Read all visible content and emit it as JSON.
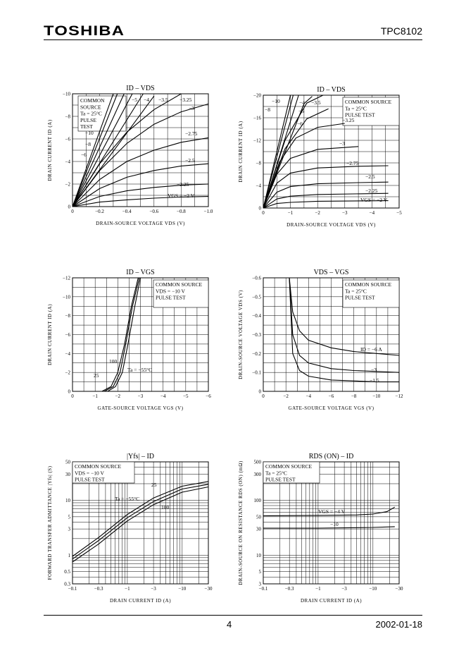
{
  "header": {
    "logo": "TOSHIBA",
    "part_number": "TPC8102"
  },
  "footer": {
    "page": "4",
    "date": "2002-01-18"
  },
  "chart_data": [
    {
      "type": "line",
      "title": "ID – VDS",
      "xlabel": "DRAIN-SOURCE VOLTAGE VDS (V)",
      "ylabel": "DRAIN CURRENT ID (A)",
      "xlim": [
        0,
        -1.0
      ],
      "ylim": [
        0,
        -10
      ],
      "x_ticks": [
        "0",
        "−0.2",
        "−0.4",
        "−0.6",
        "−0.8",
        "−1.0"
      ],
      "y_ticks": [
        "0",
        "−2",
        "−4",
        "−6",
        "−8",
        "−10"
      ],
      "annotation": [
        "COMMON",
        "SOURCE",
        "Ta = 25°C",
        "PULSE",
        "TEST"
      ],
      "series": [
        {
          "name": "−10",
          "x": [
            0,
            -0.3
          ],
          "y": [
            0,
            -10
          ]
        },
        {
          "name": "−8",
          "x": [
            0,
            -0.33
          ],
          "y": [
            0,
            -10
          ]
        },
        {
          "name": "−6",
          "x": [
            0,
            -0.38
          ],
          "y": [
            0,
            -10
          ]
        },
        {
          "name": "−5",
          "x": [
            0,
            -0.44
          ],
          "y": [
            0,
            -10
          ]
        },
        {
          "name": "−4",
          "x": [
            0,
            -0.52
          ],
          "y": [
            0,
            -10
          ]
        },
        {
          "name": "−3.5",
          "x": [
            0,
            -0.6
          ],
          "y": [
            0,
            -9.8
          ]
        },
        {
          "name": "−3.25",
          "x": [
            0,
            -0.2,
            -0.4,
            -0.6,
            -0.8
          ],
          "y": [
            0,
            -3.8,
            -6.6,
            -8.6,
            -10
          ]
        },
        {
          "name": "−3",
          "x": [
            0,
            -0.2,
            -0.4,
            -0.6,
            -0.8,
            -1.0
          ],
          "y": [
            0,
            -3.2,
            -5.6,
            -7.3,
            -8.4,
            -9.1
          ]
        },
        {
          "name": "−2.75",
          "x": [
            0,
            -0.2,
            -0.4,
            -0.6,
            -0.8,
            -1.0
          ],
          "y": [
            0,
            -2.4,
            -4.0,
            -5.0,
            -5.7,
            -6.1
          ]
        },
        {
          "name": "−2.5",
          "x": [
            0,
            -0.2,
            -0.4,
            -0.6,
            -0.8,
            -1.0
          ],
          "y": [
            0,
            -1.6,
            -2.6,
            -3.2,
            -3.6,
            -3.8
          ]
        },
        {
          "name": "−2.25",
          "x": [
            0,
            -0.2,
            -0.4,
            -0.6,
            -0.8,
            -1.0
          ],
          "y": [
            0,
            -0.9,
            -1.4,
            -1.7,
            -1.9,
            -2.0
          ]
        },
        {
          "name": "VGS = −2 V",
          "x": [
            0,
            -0.2,
            -0.4,
            -0.6,
            -0.8,
            -1.0
          ],
          "y": [
            0,
            -0.4,
            -0.6,
            -0.75,
            -0.85,
            -0.9
          ]
        }
      ]
    },
    {
      "type": "line",
      "title": "ID – VDS",
      "xlabel": "DRAIN-SOURCE VOLTAGE VDS (V)",
      "ylabel": "DRAIN CURRENT ID (A)",
      "xlim": [
        0,
        -5
      ],
      "ylim": [
        0,
        -20
      ],
      "x_ticks": [
        "0",
        "−1",
        "−2",
        "−3",
        "−4",
        "−5"
      ],
      "y_ticks": [
        "0",
        "−4",
        "−8",
        "−12",
        "−16",
        "−20"
      ],
      "annotation": [
        "COMMON SOURCE",
        "Ta = 25°C",
        "PULSE TEST"
      ],
      "series": [
        {
          "name": "−10",
          "x": [
            0,
            -1.0
          ],
          "y": [
            0,
            -20
          ]
        },
        {
          "name": "−8",
          "x": [
            0,
            -1.1
          ],
          "y": [
            0,
            -20
          ]
        },
        {
          "name": "−6",
          "x": [
            0,
            -1.3
          ],
          "y": [
            0,
            -20
          ]
        },
        {
          "name": "−5",
          "x": [
            0,
            -1.5,
            -1.8
          ],
          "y": [
            0,
            -18.5,
            -19.8
          ]
        },
        {
          "name": "−4",
          "x": [
            0,
            -0.8,
            -1.6,
            -2.2
          ],
          "y": [
            0,
            -12.0,
            -18.6,
            -20
          ]
        },
        {
          "name": "−3.5",
          "x": [
            0,
            -0.8,
            -1.6,
            -2.4
          ],
          "y": [
            0,
            -10.5,
            -15.8,
            -17.6
          ]
        },
        {
          "name": "−3.25",
          "x": [
            0,
            -0.6,
            -1.2,
            -2.0,
            -3.0
          ],
          "y": [
            0,
            -8.2,
            -12.4,
            -14.3,
            -15.0
          ]
        },
        {
          "name": "−3",
          "x": [
            0,
            -0.5,
            -1.0,
            -2.0,
            -3.5
          ],
          "y": [
            0,
            -6.0,
            -8.8,
            -10.4,
            -10.9
          ]
        },
        {
          "name": "−2.75",
          "x": [
            0,
            -0.5,
            -1.0,
            -2.0,
            -3.5,
            -4.6
          ],
          "y": [
            0,
            -4.4,
            -6.2,
            -7.1,
            -7.4,
            -7.5
          ]
        },
        {
          "name": "−2.5",
          "x": [
            0,
            -0.5,
            -1.0,
            -2.0,
            -3.5,
            -4.6
          ],
          "y": [
            0,
            -2.8,
            -3.8,
            -4.3,
            -4.5,
            -4.6
          ]
        },
        {
          "name": "−2.25",
          "x": [
            0,
            -0.5,
            -1.0,
            -2.0,
            -4.6
          ],
          "y": [
            0,
            -1.6,
            -2.1,
            -2.4,
            -2.6
          ]
        },
        {
          "name": "VGS = −2 V",
          "x": [
            0,
            -0.5,
            -1.0,
            -2.0,
            -4.6
          ],
          "y": [
            0,
            -0.8,
            -1.0,
            -1.2,
            -1.3
          ]
        }
      ]
    },
    {
      "type": "line",
      "title": "ID – VGS",
      "xlabel": "GATE-SOURCE VOLTAGE VGS (V)",
      "ylabel": "DRAIN CURRENT ID (A)",
      "xlim": [
        0,
        -6
      ],
      "ylim": [
        0,
        -12
      ],
      "x_ticks": [
        "0",
        "−1",
        "−2",
        "−3",
        "−4",
        "−5",
        "−6"
      ],
      "y_ticks": [
        "0",
        "−2",
        "−4",
        "−6",
        "−8",
        "−10",
        "−12"
      ],
      "annotation": [
        "COMMON SOURCE",
        "VDS = −10 V",
        "PULSE TEST"
      ],
      "series": [
        {
          "name": "100",
          "x": [
            -1.3,
            -1.7,
            -2.0,
            -2.3,
            -2.6,
            -2.9
          ],
          "y": [
            0,
            -0.5,
            -2.0,
            -5.0,
            -9.0,
            -12
          ]
        },
        {
          "name": "25",
          "x": [
            -1.4,
            -1.8,
            -2.1,
            -2.35,
            -2.65,
            -2.95
          ],
          "y": [
            0,
            -0.5,
            -2.0,
            -5.0,
            -9.0,
            -12
          ]
        },
        {
          "name": "Ta = −55°C",
          "x": [
            -1.55,
            -1.9,
            -2.2,
            -2.45,
            -2.75,
            -3.0
          ],
          "y": [
            0,
            -0.5,
            -2.0,
            -5.0,
            -9.0,
            -12
          ]
        }
      ]
    },
    {
      "type": "line",
      "title": "VDS – VGS",
      "xlabel": "GATE-SOURCE VOLTAGE VGS (V)",
      "ylabel": "DRAIN-SOURCE VOLTAGE VDS (V)",
      "xlim": [
        0,
        -12
      ],
      "ylim": [
        0,
        -0.6
      ],
      "x_ticks": [
        "0",
        "−2",
        "−4",
        "−6",
        "−8",
        "−10",
        "−12"
      ],
      "y_ticks": [
        "0",
        "−0.1",
        "−0.2",
        "−0.3",
        "−0.4",
        "−0.5",
        "−0.6"
      ],
      "annotation": [
        "COMMON SOURCE",
        "Ta = 25°C",
        "PULSE TEST"
      ],
      "series": [
        {
          "name": "ID = −6 A",
          "x": [
            -2.3,
            -2.6,
            -3.2,
            -4,
            -6,
            -8,
            -10,
            -12
          ],
          "y": [
            -0.6,
            -0.42,
            -0.32,
            -0.27,
            -0.23,
            -0.21,
            -0.2,
            -0.19
          ]
        },
        {
          "name": "−3",
          "x": [
            -2.3,
            -2.6,
            -3.2,
            -4,
            -6,
            -8,
            -10,
            -12
          ],
          "y": [
            -0.6,
            -0.3,
            -0.19,
            -0.15,
            -0.12,
            -0.11,
            -0.105,
            -0.1
          ]
        },
        {
          "name": "−1.5",
          "x": [
            -2.3,
            -2.6,
            -3.2,
            -4,
            -6,
            -8,
            -10,
            -12
          ],
          "y": [
            -0.6,
            -0.2,
            -0.11,
            -0.08,
            -0.06,
            -0.055,
            -0.05,
            -0.05
          ]
        }
      ]
    },
    {
      "type": "line",
      "title": "|Yfs| – ID",
      "xlabel": "DRAIN CURRENT ID (A)",
      "ylabel": "FORWARD TRANSFER ADMITTANCE |Yfs| (S)",
      "xscale": "log",
      "yscale": "log",
      "xlim": [
        -0.1,
        -30
      ],
      "ylim": [
        0.3,
        50
      ],
      "x_ticks": [
        "−0.1",
        "−0.3",
        "−1",
        "−3",
        "−10",
        "−30"
      ],
      "y_ticks": [
        "0.3",
        "0.5",
        "1",
        "3",
        "5",
        "10",
        "30",
        "50"
      ],
      "annotation": [
        "COMMON SOURCE",
        "VDS = −10 V",
        "PULSE TEST"
      ],
      "series": [
        {
          "name": "25",
          "x": [
            -0.1,
            -0.3,
            -1,
            -3,
            -10,
            -30
          ],
          "y": [
            0.95,
            2.1,
            5.5,
            11.0,
            18.0,
            22.0
          ]
        },
        {
          "name": "Ta = −55°C",
          "x": [
            -0.1,
            -0.3,
            -1,
            -3,
            -10,
            -30
          ],
          "y": [
            0.85,
            1.85,
            4.8,
            9.5,
            16.0,
            19.5
          ]
        },
        {
          "name": "100",
          "x": [
            -0.1,
            -0.3,
            -1,
            -3,
            -10,
            -30
          ],
          "y": [
            0.75,
            1.6,
            4.2,
            8.3,
            14.0,
            17.5
          ]
        }
      ]
    },
    {
      "type": "line",
      "title": "RDS (ON) – ID",
      "xlabel": "DRAIN CURRENT ID (A)",
      "ylabel": "DRAIN-SOURCE ON RESISTANCE RDS (ON) (mΩ)",
      "xscale": "log",
      "yscale": "log",
      "xlim": [
        -0.1,
        -30
      ],
      "ylim": [
        3,
        500
      ],
      "x_ticks": [
        "−0.1",
        "−0.3",
        "−1",
        "−3",
        "−10",
        "−30"
      ],
      "y_ticks": [
        "3",
        "5",
        "10",
        "30",
        "50",
        "100",
        "300",
        "500"
      ],
      "annotation": [
        "COMMON SOURCE",
        "Ta = 25°C",
        "PULSE TEST"
      ],
      "series": [
        {
          "name": "VGS = −4 V",
          "x": [
            -0.1,
            -1,
            -5,
            -10,
            -18,
            -25
          ],
          "y": [
            52,
            53,
            54,
            56,
            62,
            75
          ]
        },
        {
          "name": "−10",
          "x": [
            -0.1,
            -1,
            -10,
            -25
          ],
          "y": [
            31,
            31,
            32,
            33
          ]
        }
      ]
    }
  ]
}
